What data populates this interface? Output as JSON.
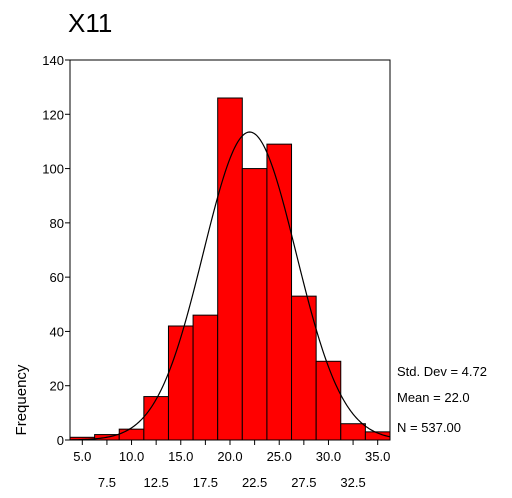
{
  "chart_data": {
    "type": "bar",
    "title": "X11",
    "xlabel": "",
    "ylabel": "Frequency",
    "xlim": [
      3.75,
      36.25
    ],
    "ylim": [
      0,
      140
    ],
    "yticks": [
      0,
      20,
      40,
      60,
      80,
      100,
      120,
      140
    ],
    "xticks_upper": [
      "5.0",
      "10.0",
      "15.0",
      "20.0",
      "25.0",
      "30.0",
      "35.0"
    ],
    "xticks_lower": [
      "7.5",
      "12.5",
      "17.5",
      "22.5",
      "27.5",
      "32.5"
    ],
    "xtick_values_upper": [
      5,
      10,
      15,
      20,
      25,
      30,
      35
    ],
    "xtick_values_lower": [
      7.5,
      12.5,
      17.5,
      22.5,
      27.5,
      32.5
    ],
    "bin_width": 2.5,
    "bins": [
      5.0,
      7.5,
      10.0,
      12.5,
      15.0,
      17.5,
      20.0,
      22.5,
      25.0,
      27.5,
      30.0,
      32.5,
      35.0
    ],
    "values": [
      1,
      2,
      4,
      16,
      42,
      46,
      126,
      100,
      109,
      53,
      29,
      6,
      3
    ],
    "normal_curve": {
      "mean": 22.0,
      "std": 4.72,
      "n": 537
    },
    "bar_color": "#ff0000",
    "grid": false,
    "stats": {
      "std_dev": "Std. Dev = 4.72",
      "mean": "Mean = 22.0",
      "n": "N = 537.00"
    }
  }
}
